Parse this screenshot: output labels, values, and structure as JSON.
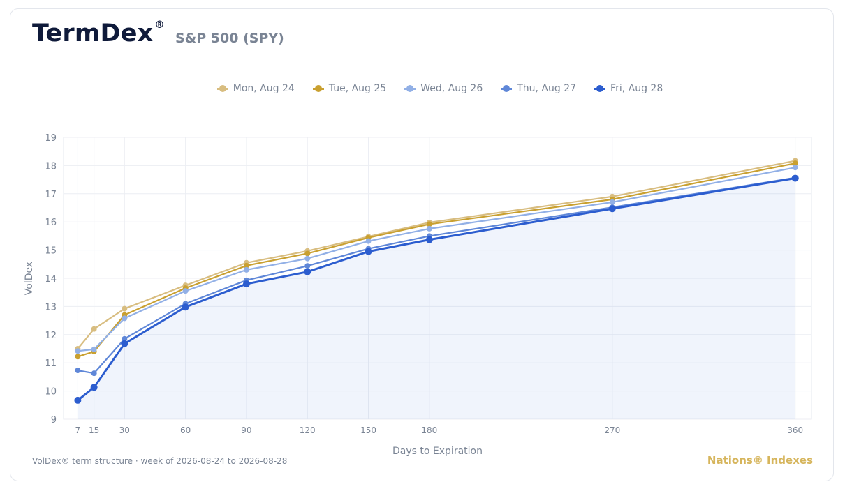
{
  "header": {
    "brand": "TermDex",
    "brand_mark": "®",
    "subtitle": "S&P 500 (SPY)"
  },
  "footer": {
    "caption": "VolDex® term structure · week of 2026-08-24 to 2026-08-28",
    "publisher": "Nations® Indexes"
  },
  "chart_data": {
    "type": "line",
    "xlabel": "Days to Expiration",
    "ylabel": "VolDex",
    "x": [
      7,
      15,
      30,
      60,
      90,
      120,
      150,
      180,
      270,
      360
    ],
    "xticks": [
      "7",
      "15",
      "30",
      "60",
      "90",
      "120",
      "150",
      "180",
      "270",
      "360"
    ],
    "xlim": [
      0,
      368
    ],
    "ylim": [
      9,
      19
    ],
    "yticks": [
      "9",
      "10",
      "11",
      "12",
      "13",
      "14",
      "15",
      "16",
      "17",
      "18",
      "19"
    ],
    "grid": true,
    "legend_position": "top-center",
    "area_fill_series": "Fri, Aug 28",
    "series": [
      {
        "name": "Mon, Aug 24",
        "color": "#d8bd80",
        "values": [
          11.5,
          12.2,
          12.92,
          13.75,
          14.55,
          14.97,
          15.48,
          15.98,
          16.9,
          18.17
        ]
      },
      {
        "name": "Tue, Aug 25",
        "color": "#c9a030",
        "values": [
          11.22,
          11.4,
          12.7,
          13.65,
          14.45,
          14.88,
          15.44,
          15.92,
          16.8,
          18.08
        ]
      },
      {
        "name": "Wed, Aug 26",
        "color": "#92b0e6",
        "values": [
          11.42,
          11.48,
          12.58,
          13.55,
          14.3,
          14.7,
          15.32,
          15.76,
          16.7,
          17.93
        ]
      },
      {
        "name": "Thu, Aug 27",
        "color": "#5f87d8",
        "values": [
          10.73,
          10.63,
          11.85,
          13.1,
          13.93,
          14.44,
          15.05,
          15.5,
          16.52,
          17.57
        ]
      },
      {
        "name": "Fri, Aug 28",
        "color": "#2c5dcf",
        "values": [
          9.67,
          10.13,
          11.68,
          12.98,
          13.8,
          14.23,
          14.95,
          15.37,
          16.47,
          17.55
        ]
      }
    ]
  }
}
